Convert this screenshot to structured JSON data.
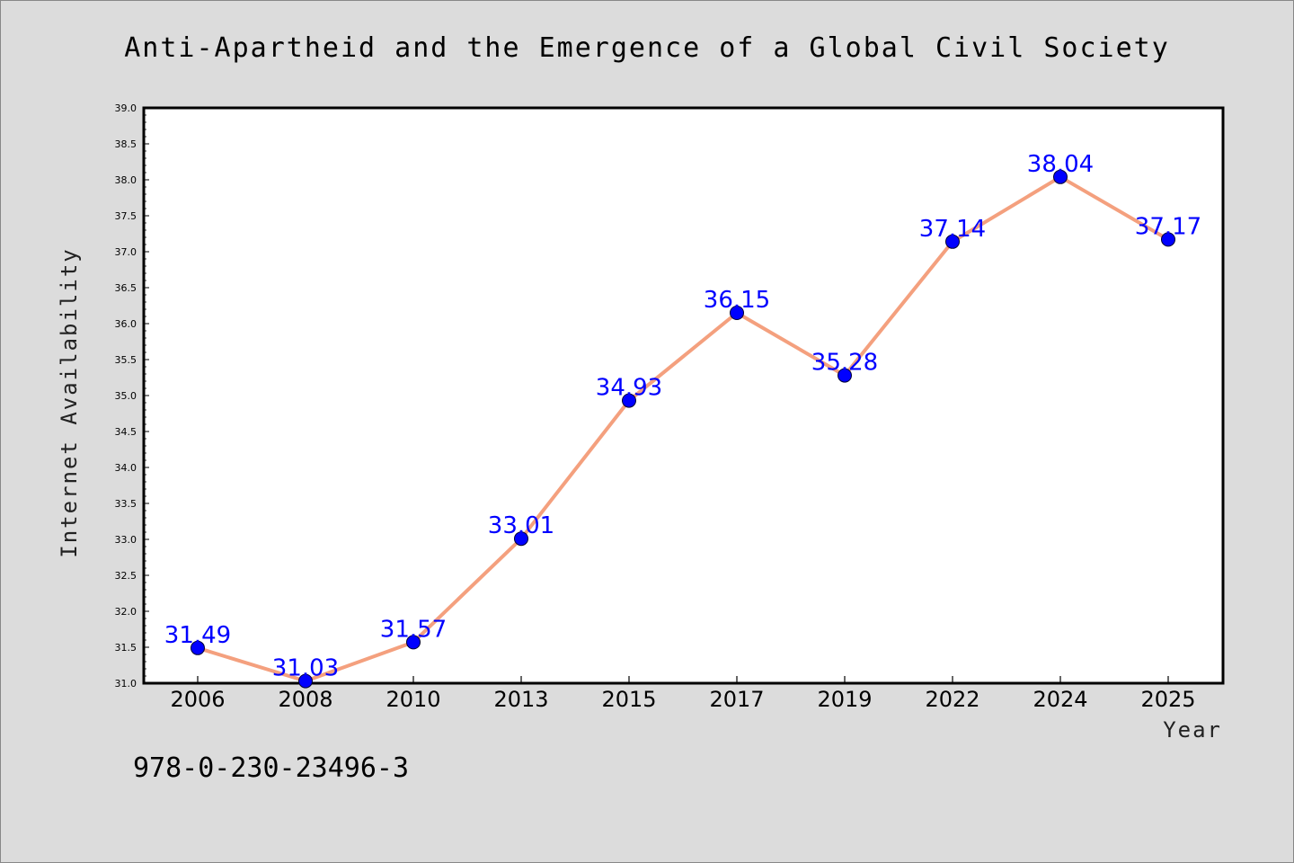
{
  "chart_data": {
    "type": "line",
    "title": "Anti-Apartheid and the Emergence of a Global Civil Society",
    "xlabel": "Year",
    "ylabel": "Internet Availability",
    "categories": [
      "2006",
      "2008",
      "2010",
      "2013",
      "2015",
      "2017",
      "2019",
      "2022",
      "2024",
      "2025"
    ],
    "series": [
      {
        "values": [
          31.49,
          31.03,
          31.57,
          33.01,
          34.93,
          36.15,
          35.28,
          37.14,
          38.04,
          37.17
        ]
      }
    ],
    "data_labels": [
      "31.49",
      "31.03",
      "31.57",
      "33.01",
      "34.93",
      "36.15",
      "35.28",
      "37.14",
      "38.04",
      "37.17"
    ],
    "ylim": [
      31.0,
      39.0
    ],
    "yticks": [
      "31.0",
      "31.5",
      "32.0",
      "32.5",
      "33.0",
      "33.5",
      "34.0",
      "34.5",
      "35.0",
      "35.5",
      "36.0",
      "36.5",
      "37.0",
      "37.5",
      "38.0",
      "38.5",
      "39.0"
    ],
    "grid": false,
    "colors": {
      "line": "#f4a07e",
      "marker": "#0000ff",
      "label": "#0000ff",
      "background": "#dcdcdc",
      "plot_background": "#ffffff"
    }
  },
  "footer": {
    "isbn": "978-0-230-23496-3"
  }
}
